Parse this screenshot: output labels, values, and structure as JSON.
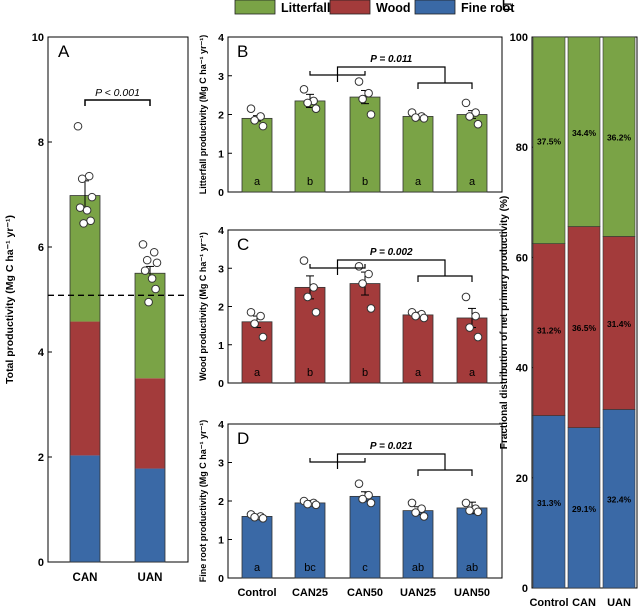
{
  "legend": {
    "items": [
      {
        "label": "Litterfall",
        "color": "#7aa346"
      },
      {
        "label": "Wood",
        "color": "#a33b3b"
      },
      {
        "label": "Fine root",
        "color": "#3a69a6"
      }
    ]
  },
  "chart_data": [
    {
      "panel": "A",
      "type": "bar",
      "stacked": true,
      "categories": [
        "CAN",
        "UAN"
      ],
      "series": [
        {
          "name": "Fine root",
          "values": [
            2.03,
            1.78
          ]
        },
        {
          "name": "Wood",
          "values": [
            2.55,
            1.72
          ]
        },
        {
          "name": "Litterfall",
          "values": [
            2.4,
            2.0
          ]
        }
      ],
      "totals": [
        6.98,
        5.5
      ],
      "error": [
        0.28,
        0.13
      ],
      "points": [
        [
          8.3,
          7.35,
          7.3,
          6.95,
          6.75,
          6.7,
          6.5,
          6.45
        ],
        [
          6.05,
          5.9,
          5.75,
          5.7,
          5.55,
          5.4,
          5.2,
          4.95
        ]
      ],
      "reference_line": 5.08,
      "ylabel": "Total productivity (Mg C ha⁻¹ yr⁻¹)",
      "ylim": [
        0,
        10
      ],
      "yticks": [
        "0",
        "2",
        "4",
        "6",
        "8",
        "10"
      ],
      "annotation": "P < 0.001"
    },
    {
      "panel": "B",
      "type": "bar",
      "categories": [
        "Control",
        "CAN25",
        "CAN50",
        "UAN25",
        "UAN50"
      ],
      "values": [
        1.9,
        2.35,
        2.45,
        1.95,
        2.0
      ],
      "error": [
        0.07,
        0.17,
        0.17,
        0.04,
        0.1
      ],
      "letters": [
        "a",
        "b",
        "b",
        "a",
        "a"
      ],
      "points": [
        [
          2.15,
          1.95,
          1.85,
          1.7
        ],
        [
          2.65,
          2.35,
          2.3,
          2.15
        ],
        [
          2.85,
          2.55,
          2.4,
          2.0
        ],
        [
          2.05,
          1.95,
          1.92,
          1.9
        ],
        [
          2.3,
          2.05,
          1.95,
          1.75
        ]
      ],
      "ylabel": "Litterfall productivity (Mg C ha⁻¹ yr⁻¹)",
      "ylim": [
        0,
        4
      ],
      "yticks": [
        "0",
        "1",
        "2",
        "3",
        "4"
      ],
      "annotation": "P = 0.011"
    },
    {
      "panel": "C",
      "type": "bar",
      "categories": [
        "Control",
        "CAN25",
        "CAN50",
        "UAN25",
        "UAN50"
      ],
      "values": [
        1.6,
        2.5,
        2.6,
        1.78,
        1.7
      ],
      "error": [
        0.15,
        0.3,
        0.3,
        0.07,
        0.25
      ],
      "letters": [
        "a",
        "b",
        "b",
        "a",
        "a"
      ],
      "points": [
        [
          1.85,
          1.75,
          1.55,
          1.2
        ],
        [
          3.2,
          2.5,
          2.25,
          1.85
        ],
        [
          3.05,
          2.85,
          2.6,
          1.95
        ],
        [
          1.85,
          1.8,
          1.75,
          1.7
        ],
        [
          2.25,
          1.75,
          1.45,
          1.2
        ]
      ],
      "ylabel": "Wood productivity (Mg C ha⁻¹ yr⁻¹)",
      "ylim": [
        0,
        4
      ],
      "yticks": [
        "0",
        "1",
        "2",
        "3",
        "4"
      ],
      "annotation": "P = 0.002"
    },
    {
      "panel": "D",
      "type": "bar",
      "categories": [
        "Control",
        "CAN25",
        "CAN50",
        "UAN25",
        "UAN50"
      ],
      "values": [
        1.6,
        1.95,
        2.12,
        1.75,
        1.82
      ],
      "error": [
        0.05,
        0.06,
        0.12,
        0.1,
        0.15
      ],
      "letters": [
        "a",
        "bc",
        "c",
        "ab",
        "ab"
      ],
      "points": [
        [
          1.65,
          1.6,
          1.58,
          1.55
        ],
        [
          2.0,
          1.95,
          1.92,
          1.9
        ],
        [
          2.45,
          2.15,
          2.05,
          1.95
        ],
        [
          1.95,
          1.8,
          1.7,
          1.6
        ],
        [
          1.95,
          1.8,
          1.75,
          1.72
        ]
      ],
      "ylabel": "Fine root productivity (Mg C ha⁻¹ yr⁻¹)",
      "ylim": [
        0,
        4
      ],
      "yticks": [
        "0",
        "1",
        "2",
        "3",
        "4"
      ],
      "annotation": "P = 0.021"
    },
    {
      "panel": "E",
      "type": "bar",
      "stacked": true,
      "categories": [
        "Control",
        "CAN",
        "UAN"
      ],
      "series": [
        {
          "name": "Fine root",
          "values": [
            31.3,
            29.1,
            32.4
          ],
          "labels": [
            "31.3%",
            "29.1%",
            "32.4%"
          ]
        },
        {
          "name": "Wood",
          "values": [
            31.2,
            36.5,
            31.4
          ],
          "labels": [
            "31.2%",
            "36.5%",
            "31.4%"
          ]
        },
        {
          "name": "Litterfall",
          "values": [
            37.5,
            34.4,
            36.2
          ],
          "labels": [
            "37.5%",
            "34.4%",
            "36.2%"
          ]
        }
      ],
      "ylabel": "Fractional distribution of net primary productivity (%)",
      "ylim": [
        0,
        100
      ],
      "yticks": [
        "0",
        "20",
        "40",
        "60",
        "80",
        "100"
      ]
    }
  ]
}
